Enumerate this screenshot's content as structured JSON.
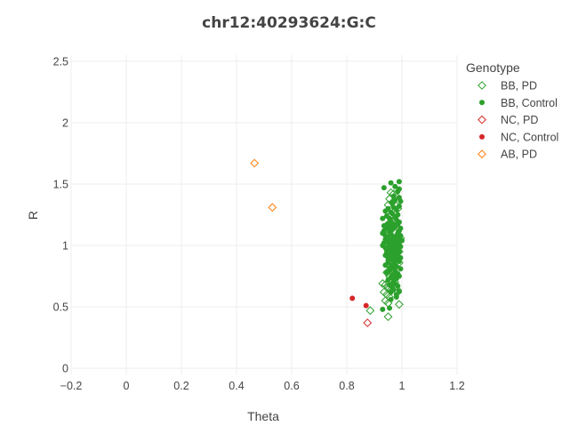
{
  "chart_data": {
    "type": "scatter",
    "title": "chr12:40293624:G:C",
    "xlabel": "Theta",
    "ylabel": "R",
    "xlim": [
      -0.2,
      1.2
    ],
    "ylim": [
      -0.05,
      2.55
    ],
    "xticks": [
      -0.2,
      0,
      0.2,
      0.4,
      0.6,
      0.8,
      1,
      1.2
    ],
    "xtick_labels": [
      "−0.2",
      "0",
      "0.2",
      "0.4",
      "0.6",
      "0.8",
      "1",
      "1.2"
    ],
    "yticks": [
      0,
      0.5,
      1,
      1.5,
      2,
      2.5
    ],
    "ytick_labels": [
      "0",
      "0.5",
      "1",
      "1.5",
      "2",
      "2.5"
    ],
    "grid": true,
    "legend": {
      "title": "Genotype",
      "position": "top-right"
    },
    "series": [
      {
        "name": "BB, PD",
        "marker": "diamond-open",
        "color": "#2ca02c",
        "x": [
          0.96,
          0.955,
          0.97,
          0.98,
          0.95,
          0.965,
          0.975,
          0.985,
          0.96,
          0.97,
          0.98,
          0.955,
          0.965,
          0.975,
          0.99,
          0.96,
          0.97,
          0.98,
          0.95,
          0.96,
          0.97,
          0.945,
          0.955,
          0.965,
          0.975,
          0.94,
          0.95,
          0.96,
          0.935,
          0.945,
          0.955,
          0.94,
          0.95,
          0.93,
          0.99,
          0.995,
          0.99,
          0.985,
          0.99,
          0.95,
          0.885
        ],
        "y": [
          1.43,
          1.38,
          1.42,
          1.4,
          1.33,
          1.35,
          1.28,
          1.3,
          1.25,
          1.2,
          1.15,
          1.1,
          1.05,
          1.0,
          0.95,
          0.92,
          0.9,
          0.88,
          0.85,
          0.82,
          0.8,
          0.78,
          0.75,
          0.72,
          0.7,
          0.68,
          0.66,
          0.64,
          0.62,
          0.6,
          0.58,
          0.55,
          0.53,
          0.69,
          1.36,
          1.06,
          0.86,
          0.62,
          0.52,
          0.42,
          0.47
        ]
      },
      {
        "name": "BB, Control",
        "marker": "circle",
        "color": "#2ca02c",
        "x": [
          0.93,
          0.935,
          0.94,
          0.945,
          0.95,
          0.955,
          0.96,
          0.965,
          0.97,
          0.975,
          0.98,
          0.985,
          0.99,
          0.995,
          1.0,
          0.93,
          0.935,
          0.94,
          0.945,
          0.95,
          0.955,
          0.96,
          0.965,
          0.97,
          0.975,
          0.98,
          0.985,
          0.99,
          0.995,
          0.94,
          0.945,
          0.95,
          0.955,
          0.96,
          0.965,
          0.97,
          0.975,
          0.98,
          0.985,
          0.99,
          0.995,
          0.94,
          0.95,
          0.96,
          0.97,
          0.98,
          0.99,
          0.945,
          0.955,
          0.965,
          0.975,
          0.985,
          0.995,
          0.95,
          0.96,
          0.97,
          0.98,
          0.99,
          0.955,
          0.965,
          0.975,
          0.985,
          0.96,
          0.97,
          0.98,
          0.99,
          0.95,
          0.96,
          0.97,
          0.98,
          0.99,
          0.945,
          0.955,
          0.965,
          0.975,
          0.985,
          0.94,
          0.95,
          0.96,
          0.97,
          0.98,
          0.99,
          0.935,
          0.945,
          0.955,
          0.965,
          0.975,
          0.985,
          0.995,
          0.94,
          0.95,
          0.96,
          0.97,
          0.98,
          0.99,
          0.945,
          0.955,
          0.965,
          0.975,
          0.985,
          0.95,
          0.96,
          0.97,
          0.98,
          0.955,
          0.965,
          0.975,
          0.96,
          0.97,
          0.98,
          0.965,
          0.975,
          0.97,
          0.985,
          0.99,
          0.935,
          0.99,
          0.93,
          0.96,
          0.975,
          0.99,
          0.995,
          0.96,
          0.98
        ],
        "y": [
          1.1,
          1.12,
          1.08,
          1.14,
          1.06,
          1.11,
          1.09,
          1.13,
          1.07,
          1.15,
          1.05,
          1.1,
          1.12,
          1.08,
          1.04,
          1.0,
          1.02,
          0.98,
          1.03,
          0.99,
          1.01,
          0.97,
          1.02,
          1.0,
          0.96,
          1.03,
          0.98,
          1.01,
          0.99,
          0.92,
          0.94,
          0.9,
          0.93,
          0.89,
          0.95,
          0.91,
          0.94,
          0.88,
          0.92,
          0.95,
          0.9,
          0.84,
          0.86,
          0.82,
          0.85,
          0.83,
          0.87,
          0.78,
          0.8,
          0.76,
          0.79,
          0.77,
          0.81,
          0.72,
          0.74,
          0.7,
          0.73,
          0.75,
          0.68,
          0.66,
          0.69,
          0.67,
          0.62,
          0.64,
          0.6,
          0.63,
          1.18,
          1.2,
          1.17,
          1.21,
          1.19,
          1.24,
          1.22,
          1.26,
          1.23,
          1.25,
          1.28,
          1.3,
          1.27,
          1.31,
          1.29,
          1.32,
          1.16,
          1.17,
          1.15,
          1.18,
          1.16,
          1.17,
          1.14,
          1.05,
          1.07,
          1.04,
          1.06,
          1.08,
          1.05,
          0.96,
          0.98,
          0.95,
          0.97,
          0.99,
          0.88,
          0.9,
          0.87,
          0.89,
          0.8,
          0.82,
          0.79,
          0.74,
          0.72,
          0.75,
          1.35,
          1.37,
          1.4,
          1.44,
          1.46,
          1.47,
          1.52,
          1.22,
          1.51,
          1.48,
          1.39,
          1.36,
          0.56,
          0.58
        ],
        "extra_x": [
          0.955,
          0.93
        ],
        "extra_y": [
          0.49,
          0.48
        ]
      },
      {
        "name": "NC, PD",
        "marker": "diamond-open",
        "color": "#d62728",
        "x": [
          0.875
        ],
        "y": [
          0.37
        ]
      },
      {
        "name": "NC, Control",
        "marker": "circle",
        "color": "#d62728",
        "x": [
          0.82,
          0.87
        ],
        "y": [
          0.57,
          0.51
        ]
      },
      {
        "name": "AB, PD",
        "marker": "diamond-open",
        "color": "#ff7f0e",
        "x": [
          0.465,
          0.53
        ],
        "y": [
          1.67,
          1.31
        ]
      }
    ]
  }
}
